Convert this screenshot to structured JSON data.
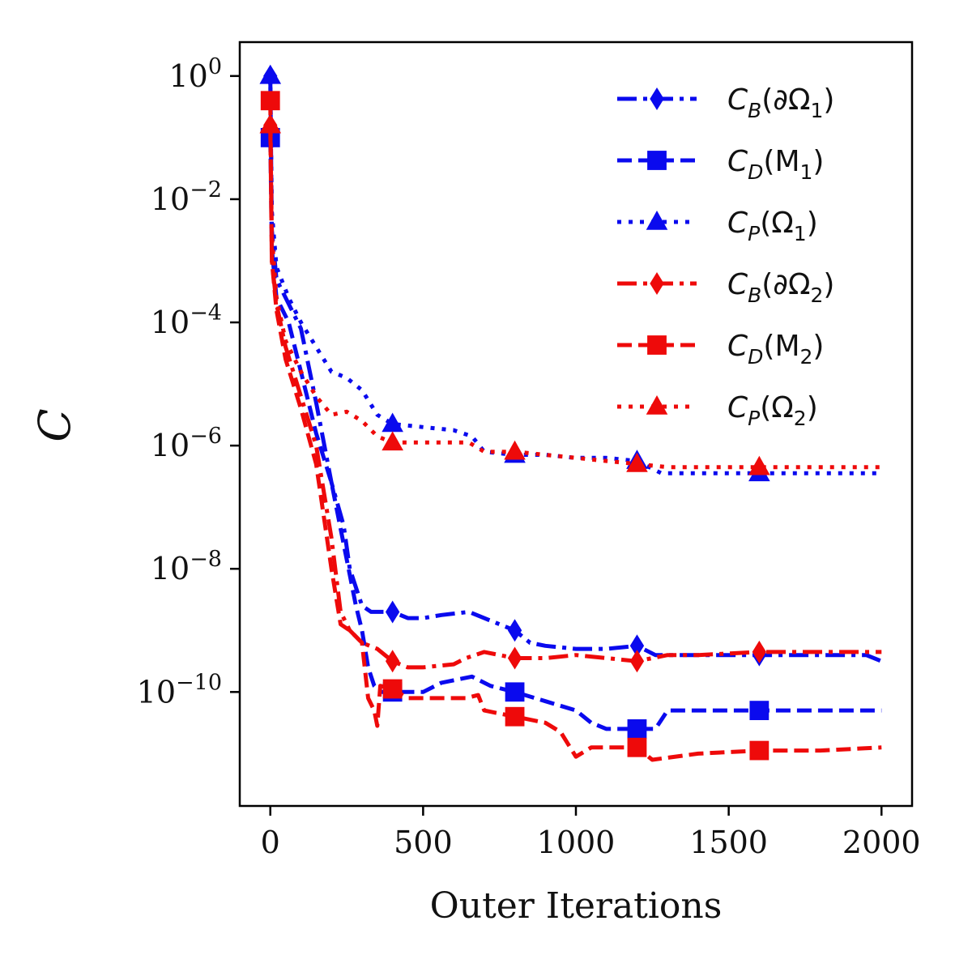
{
  "chart_data": {
    "type": "line",
    "title": "",
    "xlabel": "Outer Iterations",
    "ylabel": "C",
    "yscale": "log",
    "xlim": [
      -100,
      2100
    ],
    "ylim_exp": [
      -11.85,
      0.55
    ],
    "x_ticks": [
      0,
      500,
      1000,
      1500,
      2000
    ],
    "x_tick_labels": [
      "0",
      "500",
      "1000",
      "1500",
      "2000"
    ],
    "y_ticks_exp": [
      0,
      -2,
      -4,
      -6,
      -8,
      -10
    ],
    "y_tick_base": "10",
    "y_tick_exponents": [
      "0",
      "−2",
      "−4",
      "−6",
      "−8",
      "−10"
    ],
    "legend_position": "upper-right",
    "colors": {
      "blue": "#0a0aee",
      "red": "#ee0a0a"
    },
    "series": [
      {
        "name": "C_B(∂Ω_1)",
        "legend_main": "C",
        "legend_sub": "B",
        "legend_arg": "(∂Ω",
        "legend_arg_sub": "1",
        "legend_close": ")",
        "color": "blue",
        "dash": "dashdot",
        "marker": "diamond",
        "points": [
          [
            0,
            0
          ],
          [
            5,
            -2.5
          ],
          [
            20,
            -3.3
          ],
          [
            60,
            -3.7
          ],
          [
            100,
            -4.1
          ],
          [
            150,
            -5.3
          ],
          [
            200,
            -6.6
          ],
          [
            240,
            -7.3
          ],
          [
            260,
            -8.0
          ],
          [
            300,
            -8.6
          ],
          [
            330,
            -8.7
          ],
          [
            380,
            -8.7
          ],
          [
            400,
            -8.7
          ],
          [
            450,
            -8.8
          ],
          [
            500,
            -8.8
          ],
          [
            560,
            -8.75
          ],
          [
            650,
            -8.7
          ],
          [
            700,
            -8.8
          ],
          [
            800,
            -9.0
          ],
          [
            850,
            -9.2
          ],
          [
            900,
            -9.25
          ],
          [
            1000,
            -9.3
          ],
          [
            1100,
            -9.3
          ],
          [
            1200,
            -9.25
          ],
          [
            1260,
            -9.4
          ],
          [
            1400,
            -9.4
          ],
          [
            1600,
            -9.4
          ],
          [
            1800,
            -9.4
          ],
          [
            1950,
            -9.4
          ],
          [
            2000,
            -9.5
          ]
        ],
        "marker_x": [
          0,
          400,
          800,
          1200,
          1600
        ]
      },
      {
        "name": "C_D(M_1)",
        "legend_main": "C",
        "legend_sub": "D",
        "legend_arg": "(M",
        "legend_arg_sub": "1",
        "legend_close": ")",
        "color": "blue",
        "dash": "dashed",
        "marker": "square",
        "points": [
          [
            0,
            -1
          ],
          [
            5,
            -2.8
          ],
          [
            20,
            -3.6
          ],
          [
            60,
            -4.0
          ],
          [
            100,
            -4.8
          ],
          [
            150,
            -5.8
          ],
          [
            200,
            -6.6
          ],
          [
            240,
            -7.6
          ],
          [
            280,
            -8.6
          ],
          [
            300,
            -9.0
          ],
          [
            320,
            -9.6
          ],
          [
            340,
            -9.9
          ],
          [
            360,
            -10.0
          ],
          [
            400,
            -10.0
          ],
          [
            500,
            -10.0
          ],
          [
            560,
            -9.85
          ],
          [
            660,
            -9.75
          ],
          [
            720,
            -9.9
          ],
          [
            800,
            -10.0
          ],
          [
            900,
            -10.15
          ],
          [
            1000,
            -10.3
          ],
          [
            1050,
            -10.5
          ],
          [
            1100,
            -10.6
          ],
          [
            1200,
            -10.6
          ],
          [
            1260,
            -10.6
          ],
          [
            1300,
            -10.3
          ],
          [
            1400,
            -10.3
          ],
          [
            1600,
            -10.3
          ],
          [
            1800,
            -10.3
          ],
          [
            2000,
            -10.3
          ]
        ],
        "marker_x": [
          0,
          400,
          800,
          1200,
          1600
        ]
      },
      {
        "name": "C_P(Ω_1)",
        "legend_main": "C",
        "legend_sub": "P",
        "legend_arg": "(Ω",
        "legend_arg_sub": "1",
        "legend_close": ")",
        "color": "blue",
        "dash": "dotted",
        "marker": "triangle",
        "points": [
          [
            0,
            0
          ],
          [
            5,
            -2.2
          ],
          [
            20,
            -3.1
          ],
          [
            60,
            -3.6
          ],
          [
            100,
            -4.0
          ],
          [
            150,
            -4.4
          ],
          [
            200,
            -4.8
          ],
          [
            250,
            -4.9
          ],
          [
            300,
            -5.1
          ],
          [
            350,
            -5.5
          ],
          [
            400,
            -5.65
          ],
          [
            500,
            -5.7
          ],
          [
            600,
            -5.75
          ],
          [
            660,
            -5.85
          ],
          [
            700,
            -6.1
          ],
          [
            800,
            -6.15
          ],
          [
            900,
            -6.15
          ],
          [
            1000,
            -6.2
          ],
          [
            1100,
            -6.2
          ],
          [
            1200,
            -6.25
          ],
          [
            1280,
            -6.45
          ],
          [
            1400,
            -6.45
          ],
          [
            1600,
            -6.45
          ],
          [
            1800,
            -6.45
          ],
          [
            2000,
            -6.45
          ]
        ],
        "marker_x": [
          0,
          400,
          800,
          1200,
          1600
        ]
      },
      {
        "name": "C_B(∂Ω_2)",
        "legend_main": "C",
        "legend_sub": "B",
        "legend_arg": "(∂Ω",
        "legend_arg_sub": "2",
        "legend_close": ")",
        "color": "red",
        "dash": "dashdot",
        "marker": "diamond",
        "points": [
          [
            0,
            -0.8
          ],
          [
            5,
            -3.0
          ],
          [
            20,
            -3.7
          ],
          [
            50,
            -4.4
          ],
          [
            100,
            -5.2
          ],
          [
            150,
            -6.0
          ],
          [
            200,
            -7.5
          ],
          [
            230,
            -8.7
          ],
          [
            260,
            -9.0
          ],
          [
            300,
            -9.2
          ],
          [
            350,
            -9.3
          ],
          [
            400,
            -9.5
          ],
          [
            450,
            -9.6
          ],
          [
            500,
            -9.6
          ],
          [
            600,
            -9.55
          ],
          [
            640,
            -9.45
          ],
          [
            700,
            -9.35
          ],
          [
            800,
            -9.45
          ],
          [
            900,
            -9.45
          ],
          [
            1000,
            -9.4
          ],
          [
            1100,
            -9.45
          ],
          [
            1200,
            -9.5
          ],
          [
            1300,
            -9.4
          ],
          [
            1400,
            -9.4
          ],
          [
            1600,
            -9.35
          ],
          [
            1800,
            -9.35
          ],
          [
            2000,
            -9.35
          ]
        ],
        "marker_x": [
          0,
          400,
          800,
          1200,
          1600
        ]
      },
      {
        "name": "C_D(M_2)",
        "legend_main": "C",
        "legend_sub": "D",
        "legend_arg": "(M",
        "legend_arg_sub": "2",
        "legend_close": ")",
        "color": "red",
        "dash": "dashed",
        "marker": "square",
        "points": [
          [
            0,
            -0.4
          ],
          [
            5,
            -3.0
          ],
          [
            20,
            -3.8
          ],
          [
            50,
            -4.6
          ],
          [
            100,
            -5.4
          ],
          [
            150,
            -6.3
          ],
          [
            200,
            -8.0
          ],
          [
            230,
            -8.9
          ],
          [
            260,
            -9.0
          ],
          [
            300,
            -9.2
          ],
          [
            320,
            -10.1
          ],
          [
            340,
            -10.3
          ],
          [
            350,
            -10.55
          ],
          [
            360,
            -9.9
          ],
          [
            400,
            -9.95
          ],
          [
            450,
            -10.1
          ],
          [
            500,
            -10.1
          ],
          [
            560,
            -10.1
          ],
          [
            640,
            -10.1
          ],
          [
            680,
            -10.05
          ],
          [
            700,
            -10.3
          ],
          [
            800,
            -10.4
          ],
          [
            900,
            -10.5
          ],
          [
            950,
            -10.65
          ],
          [
            1000,
            -11.05
          ],
          [
            1050,
            -10.9
          ],
          [
            1200,
            -10.9
          ],
          [
            1250,
            -11.1
          ],
          [
            1400,
            -11.0
          ],
          [
            1600,
            -10.95
          ],
          [
            1800,
            -10.95
          ],
          [
            2000,
            -10.9
          ]
        ],
        "marker_x": [
          0,
          400,
          800,
          1200,
          1600
        ]
      },
      {
        "name": "C_P(Ω_2)",
        "legend_main": "C",
        "legend_sub": "P",
        "legend_arg": "(Ω",
        "legend_arg_sub": "2",
        "legend_close": ")",
        "color": "red",
        "dash": "dotted",
        "marker": "triangle",
        "points": [
          [
            0,
            -0.8
          ],
          [
            5,
            -2.6
          ],
          [
            20,
            -3.6
          ],
          [
            50,
            -4.3
          ],
          [
            100,
            -4.8
          ],
          [
            150,
            -5.2
          ],
          [
            200,
            -5.5
          ],
          [
            250,
            -5.45
          ],
          [
            300,
            -5.6
          ],
          [
            350,
            -5.85
          ],
          [
            400,
            -5.95
          ],
          [
            500,
            -5.95
          ],
          [
            650,
            -5.95
          ],
          [
            700,
            -6.1
          ],
          [
            800,
            -6.1
          ],
          [
            900,
            -6.15
          ],
          [
            1000,
            -6.2
          ],
          [
            1200,
            -6.3
          ],
          [
            1300,
            -6.35
          ],
          [
            1600,
            -6.35
          ],
          [
            1800,
            -6.35
          ],
          [
            2000,
            -6.35
          ]
        ],
        "marker_x": [
          0,
          400,
          800,
          1200,
          1600
        ]
      }
    ]
  }
}
